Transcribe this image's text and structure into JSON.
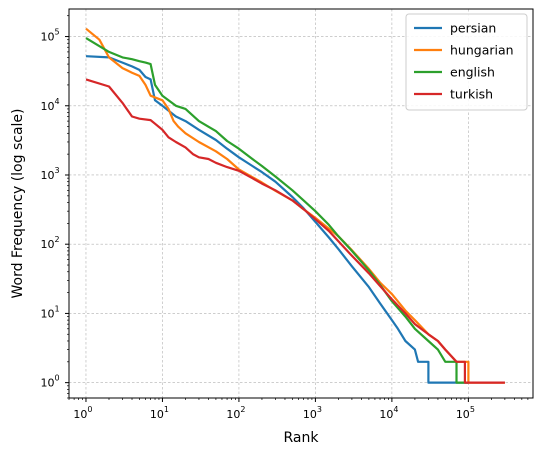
{
  "chart_data": {
    "type": "line",
    "title": "",
    "xlabel": "Rank",
    "ylabel": "Word Frequency (log scale)",
    "xscale": "log",
    "yscale": "log",
    "xlim": [
      0.6,
      700000
    ],
    "ylim": [
      0.6,
      250000
    ],
    "x_ticks": [
      {
        "value": 1,
        "base": "10",
        "exp": "0"
      },
      {
        "value": 10,
        "base": "10",
        "exp": "1"
      },
      {
        "value": 100,
        "base": "10",
        "exp": "2"
      },
      {
        "value": 1000,
        "base": "10",
        "exp": "3"
      },
      {
        "value": 10000,
        "base": "10",
        "exp": "4"
      },
      {
        "value": 100000,
        "base": "10",
        "exp": "5"
      }
    ],
    "y_ticks": [
      {
        "value": 1,
        "base": "10",
        "exp": "0"
      },
      {
        "value": 10,
        "base": "10",
        "exp": "1"
      },
      {
        "value": 100,
        "base": "10",
        "exp": "2"
      },
      {
        "value": 1000,
        "base": "10",
        "exp": "3"
      },
      {
        "value": 10000,
        "base": "10",
        "exp": "4"
      },
      {
        "value": 100000,
        "base": "10",
        "exp": "5"
      }
    ],
    "grid": true,
    "legend": "top-right",
    "series": [
      {
        "name": "persian",
        "color": "#1f77b4",
        "points": [
          [
            1,
            52000
          ],
          [
            2,
            50000
          ],
          [
            3,
            42000
          ],
          [
            4,
            37000
          ],
          [
            5,
            33000
          ],
          [
            6,
            26000
          ],
          [
            7,
            24000
          ],
          [
            8,
            12000
          ],
          [
            10,
            10000
          ],
          [
            15,
            7000
          ],
          [
            20,
            6000
          ],
          [
            30,
            4500
          ],
          [
            50,
            3200
          ],
          [
            70,
            2400
          ],
          [
            100,
            1800
          ],
          [
            150,
            1350
          ],
          [
            200,
            1100
          ],
          [
            300,
            800
          ],
          [
            500,
            480
          ],
          [
            700,
            330
          ],
          [
            1000,
            210
          ],
          [
            1500,
            125
          ],
          [
            2000,
            85
          ],
          [
            3000,
            48
          ],
          [
            5000,
            24
          ],
          [
            7000,
            14
          ],
          [
            10000,
            8
          ],
          [
            12000,
            6
          ],
          [
            15000,
            4
          ],
          [
            20000,
            3
          ],
          [
            22000,
            2
          ],
          [
            30000,
            2
          ],
          [
            30001,
            1
          ],
          [
            100000,
            1
          ]
        ]
      },
      {
        "name": "hungarian",
        "color": "#ff7f0e",
        "points": [
          [
            1,
            130000
          ],
          [
            1.5,
            90000
          ],
          [
            2,
            50000
          ],
          [
            3,
            35000
          ],
          [
            4,
            30000
          ],
          [
            5,
            27000
          ],
          [
            6,
            20000
          ],
          [
            7,
            14000
          ],
          [
            10,
            12000
          ],
          [
            12,
            9000
          ],
          [
            14,
            6000
          ],
          [
            16,
            5000
          ],
          [
            20,
            4000
          ],
          [
            30,
            3000
          ],
          [
            50,
            2200
          ],
          [
            70,
            1700
          ],
          [
            100,
            1200
          ],
          [
            200,
            780
          ],
          [
            300,
            590
          ],
          [
            500,
            430
          ],
          [
            700,
            320
          ],
          [
            1000,
            240
          ],
          [
            2000,
            130
          ],
          [
            3000,
            82
          ],
          [
            5000,
            44
          ],
          [
            7000,
            28
          ],
          [
            10000,
            19
          ],
          [
            15000,
            11
          ],
          [
            20000,
            8
          ],
          [
            30000,
            5
          ],
          [
            40000,
            4
          ],
          [
            50000,
            3
          ],
          [
            70000,
            2
          ],
          [
            80000,
            2
          ],
          [
            100000,
            2
          ],
          [
            100001,
            1
          ],
          [
            300000,
            1
          ]
        ]
      },
      {
        "name": "english",
        "color": "#2ca02c",
        "points": [
          [
            1,
            95000
          ],
          [
            2,
            60000
          ],
          [
            3,
            50000
          ],
          [
            4,
            47000
          ],
          [
            5,
            44000
          ],
          [
            6,
            42000
          ],
          [
            7,
            40000
          ],
          [
            8,
            20000
          ],
          [
            10,
            14000
          ],
          [
            15,
            10000
          ],
          [
            20,
            9000
          ],
          [
            30,
            6000
          ],
          [
            50,
            4300
          ],
          [
            70,
            3100
          ],
          [
            100,
            2400
          ],
          [
            150,
            1700
          ],
          [
            200,
            1350
          ],
          [
            300,
            950
          ],
          [
            500,
            600
          ],
          [
            700,
            430
          ],
          [
            1000,
            300
          ],
          [
            1500,
            190
          ],
          [
            2000,
            130
          ],
          [
            3000,
            80
          ],
          [
            5000,
            42
          ],
          [
            7000,
            26
          ],
          [
            10000,
            15
          ],
          [
            15000,
            9
          ],
          [
            20000,
            6
          ],
          [
            30000,
            4
          ],
          [
            40000,
            3
          ],
          [
            50000,
            2
          ],
          [
            60000,
            2
          ],
          [
            70000,
            2
          ],
          [
            70001,
            1
          ],
          [
            100000,
            1
          ]
        ]
      },
      {
        "name": "turkish",
        "color": "#d62728",
        "points": [
          [
            1,
            24000
          ],
          [
            2,
            19000
          ],
          [
            3,
            11000
          ],
          [
            4,
            7000
          ],
          [
            5,
            6500
          ],
          [
            7,
            6200
          ],
          [
            8,
            5500
          ],
          [
            10,
            4500
          ],
          [
            12,
            3500
          ],
          [
            15,
            3000
          ],
          [
            20,
            2500
          ],
          [
            25,
            2000
          ],
          [
            30,
            1800
          ],
          [
            40,
            1700
          ],
          [
            50,
            1500
          ],
          [
            70,
            1300
          ],
          [
            100,
            1150
          ],
          [
            150,
            900
          ],
          [
            200,
            750
          ],
          [
            300,
            600
          ],
          [
            500,
            430
          ],
          [
            700,
            320
          ],
          [
            1000,
            230
          ],
          [
            1500,
            155
          ],
          [
            2000,
            110
          ],
          [
            3000,
            68
          ],
          [
            5000,
            38
          ],
          [
            7000,
            25
          ],
          [
            10000,
            16
          ],
          [
            15000,
            10
          ],
          [
            20000,
            7
          ],
          [
            30000,
            5
          ],
          [
            40000,
            4
          ],
          [
            50000,
            3
          ],
          [
            70000,
            2
          ],
          [
            90000,
            2
          ],
          [
            90001,
            1
          ],
          [
            300000,
            1
          ]
        ]
      }
    ]
  }
}
